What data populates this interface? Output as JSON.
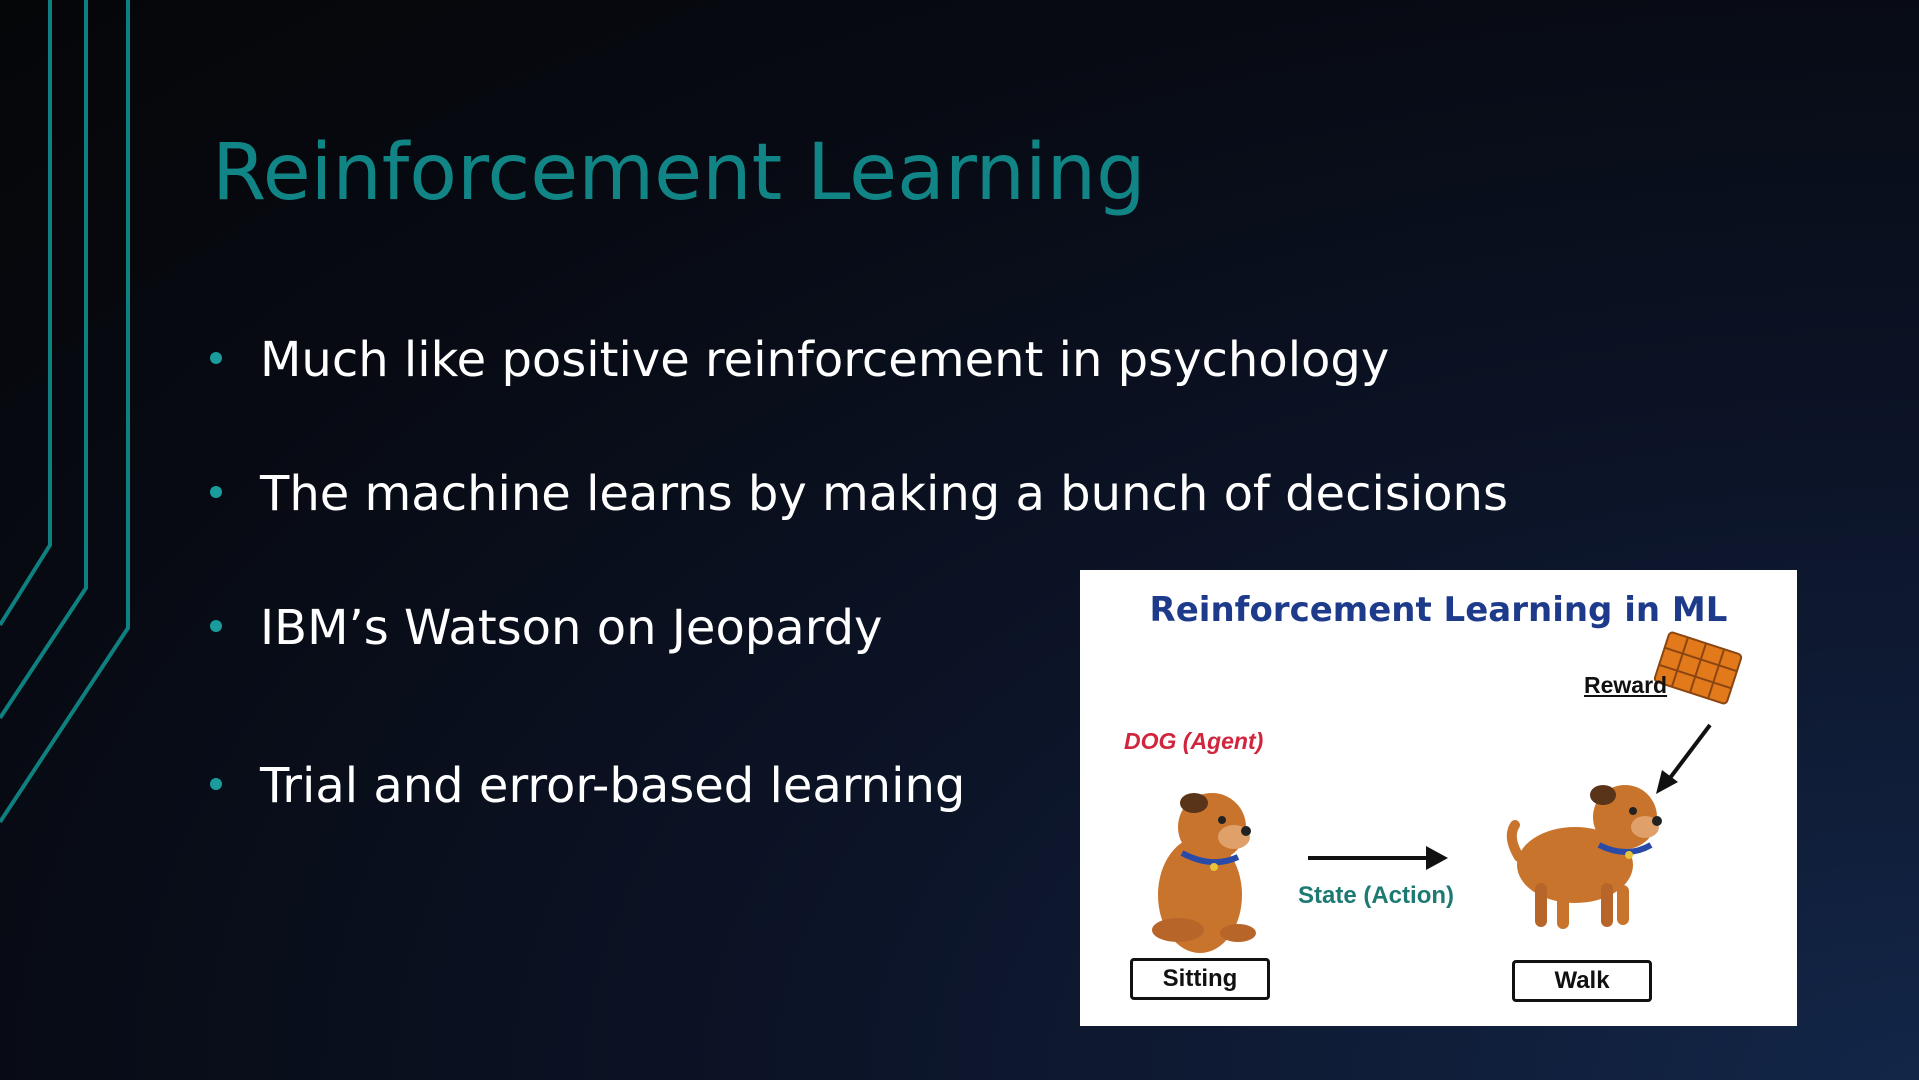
{
  "slide": {
    "title": "Reinforcement Learning",
    "bullets": [
      "Much like positive reinforcement in psychology",
      "The machine learns by making a bunch of decisions",
      "IBM’s Watson on Jeopardy",
      "Trial and error-based learning"
    ],
    "colors": {
      "title": "#118585",
      "bullet_dot": "#1a9c9c",
      "text": "#ffffff",
      "accent_lines": "#0f8080"
    }
  },
  "figure": {
    "title": "Reinforcement Learning in ML",
    "agent_label": "DOG (Agent)",
    "reward_label": "Reward",
    "state_label": "State (Action)",
    "sitting_label": "Sitting",
    "walk_label": "Walk",
    "icons": [
      "dog-sitting-icon",
      "dog-walking-icon",
      "chocolate-reward-icon",
      "arrow-icon"
    ]
  }
}
